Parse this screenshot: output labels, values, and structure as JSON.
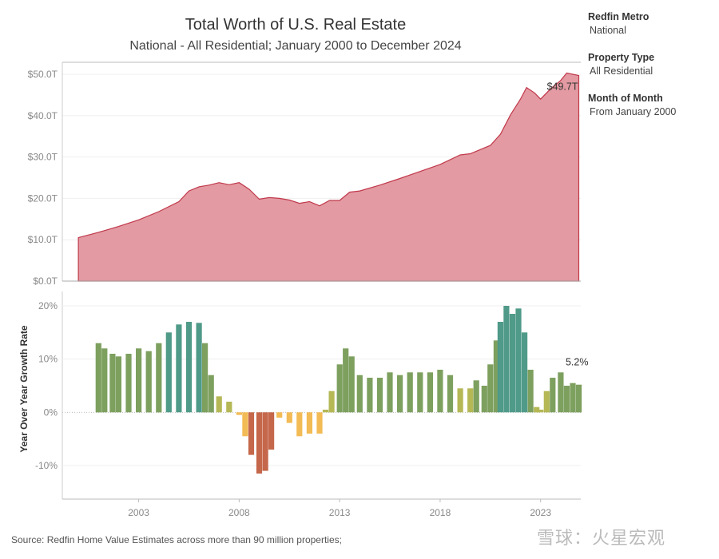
{
  "header": {
    "title": "Total Worth of U.S. Real Estate",
    "subtitle": "National - All Residential; January 2000 to December 2024"
  },
  "filters": [
    {
      "label": "Redfin Metro",
      "value": "National"
    },
    {
      "label": "Property Type",
      "value": "All Residential"
    },
    {
      "label": "Month of Month",
      "value": "From January 2000"
    }
  ],
  "footer": {
    "source": "Source: Redfin Home Value Estimates across more than 90 million properties;",
    "watermark": "雪球：火星宏观"
  },
  "chart_data": [
    {
      "type": "area",
      "title": "Total Worth of U.S. Real Estate",
      "color": "#e39aa2",
      "line_color": "#c0394b",
      "ylim": [
        0,
        50
      ],
      "yticks": [
        "$0.0T",
        "$10.0T",
        "$20.0T",
        "$30.0T",
        "$40.0T",
        "$50.0T"
      ],
      "annotation": "$49.7T",
      "x": [
        2000.0,
        2001.0,
        2002.0,
        2003.0,
        2004.0,
        2005.0,
        2005.5,
        2006.0,
        2006.5,
        2007.0,
        2007.5,
        2008.0,
        2008.5,
        2009.0,
        2009.5,
        2010.0,
        2010.5,
        2011.0,
        2011.5,
        2012.0,
        2012.5,
        2013.0,
        2013.5,
        2014.0,
        2015.0,
        2016.0,
        2017.0,
        2018.0,
        2019.0,
        2019.5,
        2020.0,
        2020.5,
        2021.0,
        2021.5,
        2022.0,
        2022.3,
        2022.7,
        2023.0,
        2023.5,
        2024.0,
        2024.3,
        2024.6,
        2024.9
      ],
      "values": [
        10.5,
        11.8,
        13.2,
        14.8,
        16.8,
        19.2,
        21.8,
        22.8,
        23.2,
        23.8,
        23.3,
        23.8,
        22.2,
        19.8,
        20.2,
        20.0,
        19.6,
        18.8,
        19.2,
        18.2,
        19.5,
        19.5,
        21.5,
        21.8,
        23.2,
        24.8,
        26.5,
        28.2,
        30.5,
        30.8,
        31.8,
        32.8,
        35.5,
        40.2,
        44.0,
        46.8,
        45.5,
        44.0,
        46.5,
        48.5,
        50.3,
        50.0,
        49.7
      ]
    },
    {
      "type": "bar",
      "ylabel": "Year Over Year Growth Rate",
      "ylim": [
        -15,
        20
      ],
      "yticks": [
        "-10%",
        "0%",
        "10%",
        "20%"
      ],
      "xticks": [
        "2003",
        "2008",
        "2013",
        "2018",
        "2023"
      ],
      "annotation": "5.2%",
      "color_scale": {
        "negative_strong": "#c5674a",
        "negative_mild": "#f3bb55",
        "low": "#b5b855",
        "medium": "#7da05f",
        "high": "#4f9a88"
      },
      "x": [
        2001.0,
        2001.3,
        2001.7,
        2002.0,
        2002.5,
        2003.0,
        2003.5,
        2004.0,
        2004.5,
        2005.0,
        2005.5,
        2006.0,
        2006.3,
        2006.6,
        2007.0,
        2007.5,
        2008.0,
        2008.3,
        2008.6,
        2009.0,
        2009.3,
        2009.6,
        2010.0,
        2010.5,
        2011.0,
        2011.5,
        2012.0,
        2012.3,
        2012.6,
        2013.0,
        2013.3,
        2013.6,
        2014.0,
        2014.5,
        2015.0,
        2015.5,
        2016.0,
        2016.5,
        2017.0,
        2017.5,
        2018.0,
        2018.5,
        2019.0,
        2019.5,
        2019.8,
        2020.2,
        2020.5,
        2020.8,
        2021.0,
        2021.3,
        2021.6,
        2021.9,
        2022.2,
        2022.5,
        2022.8,
        2023.0,
        2023.3,
        2023.6,
        2024.0,
        2024.3,
        2024.6,
        2024.9
      ],
      "values": [
        13.0,
        12.0,
        11.0,
        10.5,
        11.0,
        12.0,
        11.5,
        13.0,
        15.0,
        16.5,
        17.0,
        16.8,
        13.0,
        7.0,
        3.0,
        2.0,
        -0.5,
        -4.5,
        -8.0,
        -11.5,
        -11.0,
        -7.0,
        -1.0,
        -2.0,
        -4.5,
        -4.0,
        -4.0,
        0.5,
        4.0,
        9.0,
        12.0,
        10.5,
        7.0,
        6.5,
        6.5,
        7.5,
        7.0,
        7.5,
        7.5,
        7.5,
        8.0,
        7.0,
        4.5,
        4.5,
        6.0,
        5.0,
        9.0,
        13.5,
        17.0,
        20.0,
        18.5,
        19.5,
        15.0,
        8.0,
        1.0,
        0.5,
        4.0,
        6.5,
        7.5,
        5.0,
        5.5,
        5.2
      ]
    }
  ]
}
